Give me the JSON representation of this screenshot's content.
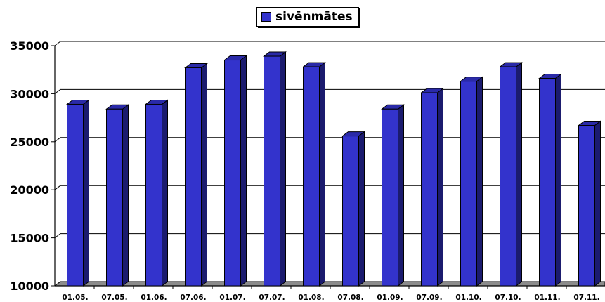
{
  "chart_data": {
    "type": "bar",
    "title": "",
    "xlabel": "",
    "ylabel": "",
    "categories": [
      "01.05.",
      "07.05.",
      "01.06.",
      "07.06.",
      "01.07.",
      "07.07.",
      "01.08.",
      "07.08.",
      "01.09.",
      "07.09.",
      "01.10.",
      "07.10.",
      "01.11.",
      "07.11."
    ],
    "series": [
      {
        "name": "sivēnmātes",
        "color": "#3333cc",
        "values": [
          28900,
          28400,
          28900,
          32700,
          33500,
          33900,
          32800,
          25600,
          28400,
          30100,
          31300,
          32800,
          31600,
          26700
        ]
      }
    ],
    "ylim": [
      10000,
      35000
    ],
    "yticks": [
      "10000",
      "15000",
      "20000",
      "25000",
      "30000",
      "35000"
    ],
    "grid": true,
    "legend_position": "top-center",
    "style": "3d-columns"
  }
}
